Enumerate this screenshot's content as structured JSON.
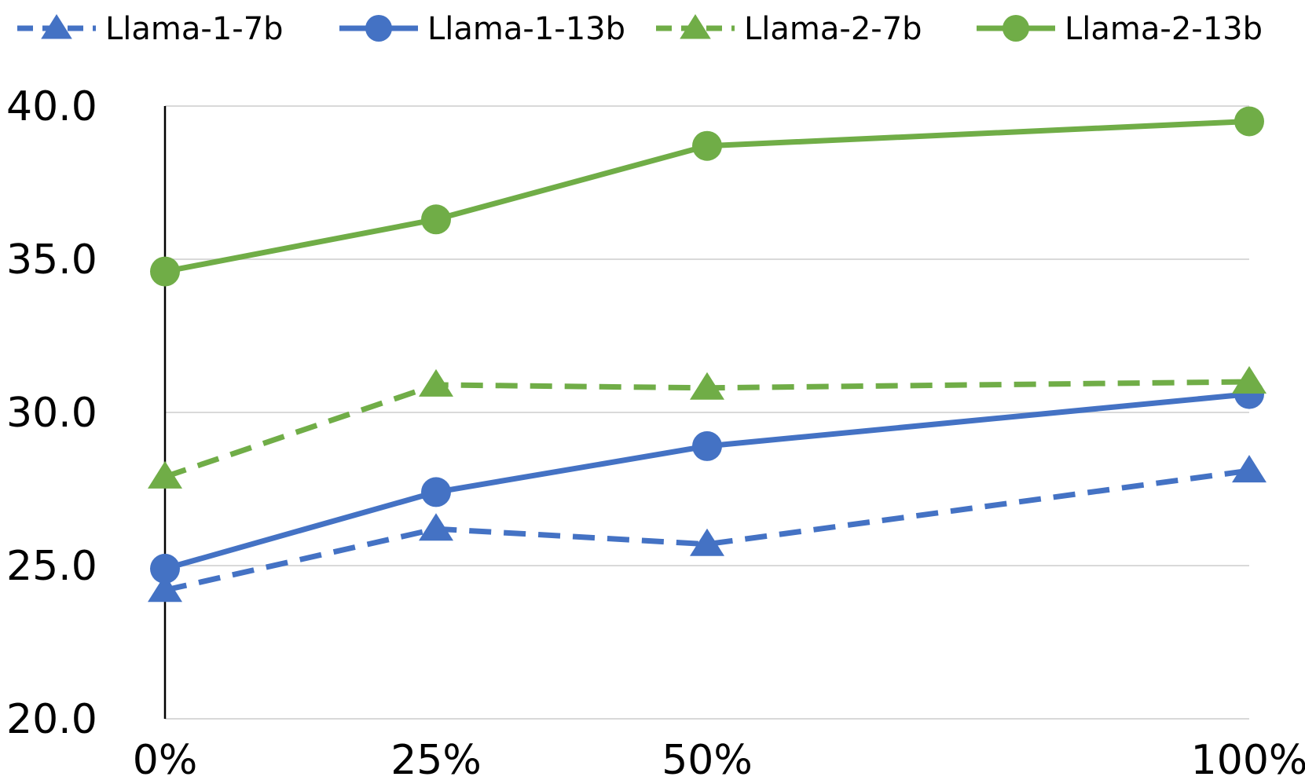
{
  "chart_data": {
    "type": "line",
    "categories": [
      "0%",
      "25%",
      "50%",
      "100%"
    ],
    "x_positions": [
      0,
      25,
      50,
      100
    ],
    "ylim": [
      20.0,
      40.0
    ],
    "yticks": [
      "20.0",
      "25.0",
      "30.0",
      "35.0",
      "40.0"
    ],
    "ytick_values": [
      20,
      25,
      30,
      35,
      40
    ],
    "grid": true,
    "legend_position": "top",
    "title": "",
    "xlabel": "",
    "ylabel": "",
    "series": [
      {
        "name": "Llama-1-7b",
        "values": [
          24.2,
          26.2,
          25.7,
          28.1
        ],
        "color": "#4472c4",
        "dashed": true,
        "marker": "triangle"
      },
      {
        "name": "Llama-1-13b",
        "values": [
          24.9,
          27.4,
          28.9,
          30.6
        ],
        "color": "#4472c4",
        "dashed": false,
        "marker": "circle"
      },
      {
        "name": "Llama-2-7b",
        "values": [
          27.9,
          30.9,
          30.8,
          31.0
        ],
        "color": "#70ad47",
        "dashed": true,
        "marker": "triangle"
      },
      {
        "name": "Llama-2-13b",
        "values": [
          34.6,
          36.3,
          38.7,
          39.5
        ],
        "color": "#70ad47",
        "dashed": false,
        "marker": "circle"
      }
    ]
  }
}
